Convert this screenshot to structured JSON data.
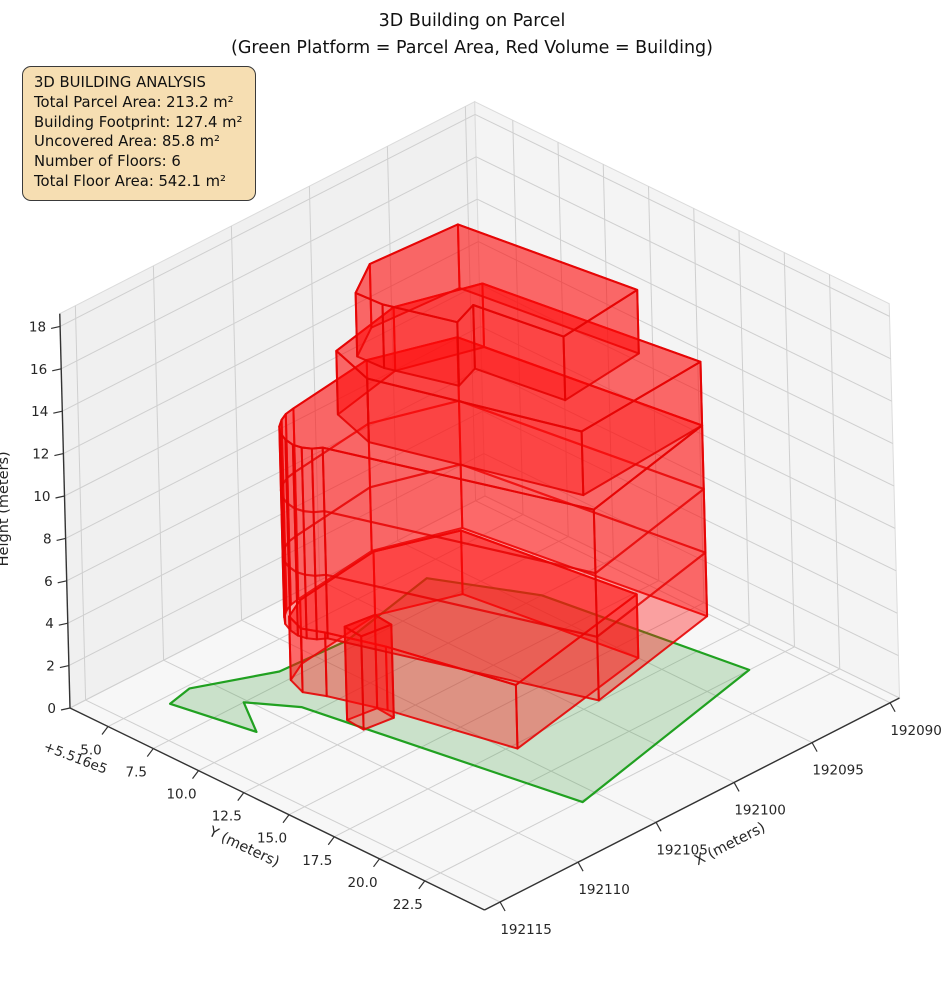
{
  "title": {
    "line1": "3D Building on Parcel",
    "line2": "(Green Platform = Parcel Area, Red Volume = Building)"
  },
  "info_box": {
    "title": "3D BUILDING ANALYSIS",
    "parcel_area": "Total Parcel Area: 213.2 m²",
    "building_footprint": "Building Footprint: 127.4 m²",
    "uncovered_area": "Uncovered Area: 85.8 m²",
    "number_of_floors": "Number of Floors: 6",
    "total_floor_area": "Total Floor Area: 542.1 m²",
    "background_color": "#f6deb2",
    "border_color": "#3a3a3a"
  },
  "chart_data": {
    "type": "3d-surface-scene",
    "title": "3D Building on Parcel",
    "subtitle": "(Green Platform = Parcel Area, Red Volume = Building)",
    "axes": {
      "xlabel": "X (meters)",
      "ylabel": "Y (meters)",
      "zlabel": "Height (meters)",
      "y_offset_text": "+5.516e5",
      "x_ticks": [
        192115,
        192110,
        192105,
        192100,
        192095,
        192090
      ],
      "y_ticks": [
        5.0,
        7.5,
        10.0,
        12.5,
        15.0,
        17.5,
        20.0,
        22.5
      ],
      "z_ticks": [
        0,
        2,
        4,
        6,
        8,
        10,
        12,
        14,
        16,
        18
      ],
      "x_range": [
        192089.4,
        192116.0
      ],
      "y_range": [
        2.9,
        25.8
      ],
      "z_range": [
        0,
        18.6
      ],
      "grid": true,
      "pane_wall_color": "#f0f0f0",
      "pane_floor_color": "#f7f7f7",
      "grid_color": "#cfcfcf",
      "spine_color": "#333333"
    },
    "parcel": {
      "label": "Parcel Area (green platform)",
      "fill": "#2d962d",
      "fill_opacity": 0.22,
      "stroke": "#21a121",
      "z": 0,
      "polygon": [
        [
          192111.0,
          5.2
        ],
        [
          192112.6,
          5.5
        ],
        [
          192111.7,
          9.5
        ],
        [
          192110.2,
          7.5
        ],
        [
          192108.7,
          9.4
        ],
        [
          192106.0,
          22.6
        ],
        [
          192092.3,
          20.0
        ],
        [
          192094.0,
          10.0
        ],
        [
          192096.5,
          5.8
        ],
        [
          192103.0,
          7.0
        ],
        [
          192107.1,
          6.8
        ]
      ]
    },
    "building": {
      "label": "Building volume (red)",
      "fill": "#ff0a0a",
      "fill_opacity": 0.37,
      "stroke": "#e60404",
      "tiers": [
        {
          "name": "ground-floor",
          "z0": 0,
          "z1": 3,
          "rings": [],
          "footprint": [
            [
              192104.6,
              17.8
            ],
            [
              192095.0,
              16.2
            ],
            [
              192096.4,
              7.7
            ],
            [
              192100.5,
              6.4
            ],
            [
              192105.9,
              7.0
            ],
            [
              192107.3,
              7.6
            ],
            [
              192107.7,
              8.6
            ],
            [
              192107.2,
              9.5
            ],
            [
              192106.2,
              12.0
            ]
          ]
        },
        {
          "name": "entry-column",
          "z0": 0,
          "z1": 4.4,
          "rings": [],
          "footprint": [
            [
              192106.4,
              11.6
            ],
            [
              192108.1,
              11.4
            ],
            [
              192108.2,
              12.4
            ],
            [
              192106.5,
              12.6
            ]
          ]
        },
        {
          "name": "floors-2-to-4",
          "z0": 3,
          "z1": 12,
          "rings": [
            6,
            9
          ],
          "footprint": [
            [
              192103.0,
              21.0
            ],
            [
              192094.2,
              19.4
            ],
            [
              192096.2,
              7.6
            ],
            [
              192100.5,
              6.3
            ],
            [
              192105.9,
              6.9
            ],
            [
              192106.5,
              7.0
            ],
            [
              192107.0,
              7.2
            ],
            [
              192107.5,
              7.5
            ],
            [
              192107.9,
              7.9
            ],
            [
              192108.15,
              8.4
            ],
            [
              192108.25,
              8.9
            ],
            [
              192108.15,
              9.3
            ],
            [
              192107.9,
              9.65
            ],
            [
              192107.5,
              9.9
            ]
          ]
        },
        {
          "name": "floor-5",
          "z0": 12,
          "z1": 15,
          "rings": [],
          "footprint": [
            [
              192102.4,
              19.9
            ],
            [
              192094.2,
              19.4
            ],
            [
              192096.0,
              8.9
            ],
            [
              192100.3,
              7.7
            ],
            [
              192104.9,
              8.5
            ],
            [
              192105.7,
              10.9
            ]
          ]
        },
        {
          "name": "floor-6",
          "z0": 15,
          "z1": 18,
          "rings": [],
          "footprint": [
            [
              192104.5,
              10.8
            ],
            [
              192103.3,
              13.9
            ],
            [
              192101.7,
              13.4
            ],
            [
              192100.9,
              17.7
            ],
            [
              192095.6,
              17.2
            ],
            [
              192097.0,
              8.5
            ],
            [
              192102.3,
              8.2
            ],
            [
              192104.6,
              9.4
            ]
          ]
        }
      ]
    },
    "stats": {
      "total_parcel_area_m2": 213.2,
      "building_footprint_m2": 127.4,
      "uncovered_area_m2": 85.8,
      "number_of_floors": 6,
      "total_floor_area_m2": 542.1
    }
  }
}
